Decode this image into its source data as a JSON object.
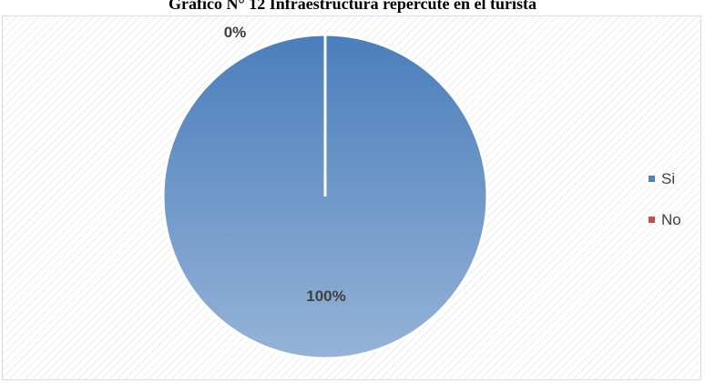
{
  "chart_data": {
    "type": "pie",
    "title": "Gráfico N° 12 Infraestructura repercute en el turista",
    "categories": [
      "Si",
      "No"
    ],
    "values": [
      100,
      0
    ],
    "labels": [
      "100%",
      "0%"
    ],
    "colors": [
      "#4f81bd",
      "#c0504d"
    ],
    "legend_position": "right"
  },
  "legend": {
    "items": [
      {
        "label": "Si",
        "color": "#4f81bd"
      },
      {
        "label": "No",
        "color": "#c0504d"
      }
    ]
  }
}
